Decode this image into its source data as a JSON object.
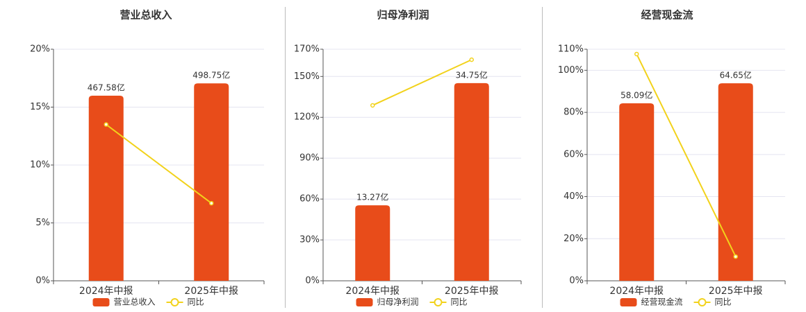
{
  "chart_data": [
    {
      "type": "combo",
      "title": "营业总收入",
      "categories": [
        "2024年中报",
        "2025年中报"
      ],
      "series": [
        {
          "name": "营业总收入",
          "type": "bar",
          "axis": "y2",
          "color": "#e84c1a",
          "values": [
            467.58,
            498.75
          ],
          "value_labels": [
            "467.58亿",
            "498.75亿"
          ]
        },
        {
          "name": "同比",
          "type": "line",
          "color": "#f2d21b",
          "values": [
            13.5,
            6.7
          ]
        }
      ],
      "ylim": [
        0,
        20
      ],
      "yticks": [
        {
          "value": 0,
          "label": "0%"
        },
        {
          "value": 5,
          "label": "5%"
        },
        {
          "value": 10,
          "label": "10%"
        },
        {
          "value": 15,
          "label": "15%"
        },
        {
          "value": 20,
          "label": "20%"
        }
      ],
      "y2lim": [
        0,
        585
      ],
      "grid": true,
      "legend": "bottom"
    },
    {
      "type": "combo",
      "title": "归母净利润",
      "categories": [
        "2024年中报",
        "2025年中报"
      ],
      "series": [
        {
          "name": "归母净利润",
          "type": "bar",
          "axis": "y2",
          "color": "#e84c1a",
          "values": [
            13.27,
            34.75
          ],
          "value_labels": [
            "13.27亿",
            "34.75亿"
          ]
        },
        {
          "name": "同比",
          "type": "line",
          "color": "#f2d21b",
          "values": [
            128.8,
            162.3
          ]
        }
      ],
      "ylim": [
        0,
        170
      ],
      "yticks": [
        {
          "value": 0,
          "label": "0%"
        },
        {
          "value": 30,
          "label": "30%"
        },
        {
          "value": 60,
          "label": "60%"
        },
        {
          "value": 90,
          "label": "90%"
        },
        {
          "value": 120,
          "label": "120%"
        },
        {
          "value": 150,
          "label": "150%"
        },
        {
          "value": 170,
          "label": "170%"
        }
      ],
      "y2lim": [
        0,
        40.7
      ],
      "grid": true,
      "legend": "bottom"
    },
    {
      "type": "combo",
      "title": "经营现金流",
      "categories": [
        "2024年中报",
        "2025年中报"
      ],
      "series": [
        {
          "name": "经营现金流",
          "type": "bar",
          "axis": "y2",
          "color": "#e84c1a",
          "values": [
            58.09,
            64.65
          ],
          "value_labels": [
            "58.09亿",
            "64.65亿"
          ]
        },
        {
          "name": "同比",
          "type": "line",
          "color": "#f2d21b",
          "values": [
            107.7,
            11.5
          ]
        }
      ],
      "ylim": [
        0,
        110
      ],
      "yticks": [
        {
          "value": 0,
          "label": "0%"
        },
        {
          "value": 20,
          "label": "20%"
        },
        {
          "value": 40,
          "label": "40%"
        },
        {
          "value": 60,
          "label": "60%"
        },
        {
          "value": 80,
          "label": "80%"
        },
        {
          "value": 100,
          "label": "100%"
        },
        {
          "value": 110,
          "label": "110%"
        }
      ],
      "y2lim": [
        0,
        75.8
      ],
      "grid": true,
      "legend": "bottom"
    }
  ]
}
